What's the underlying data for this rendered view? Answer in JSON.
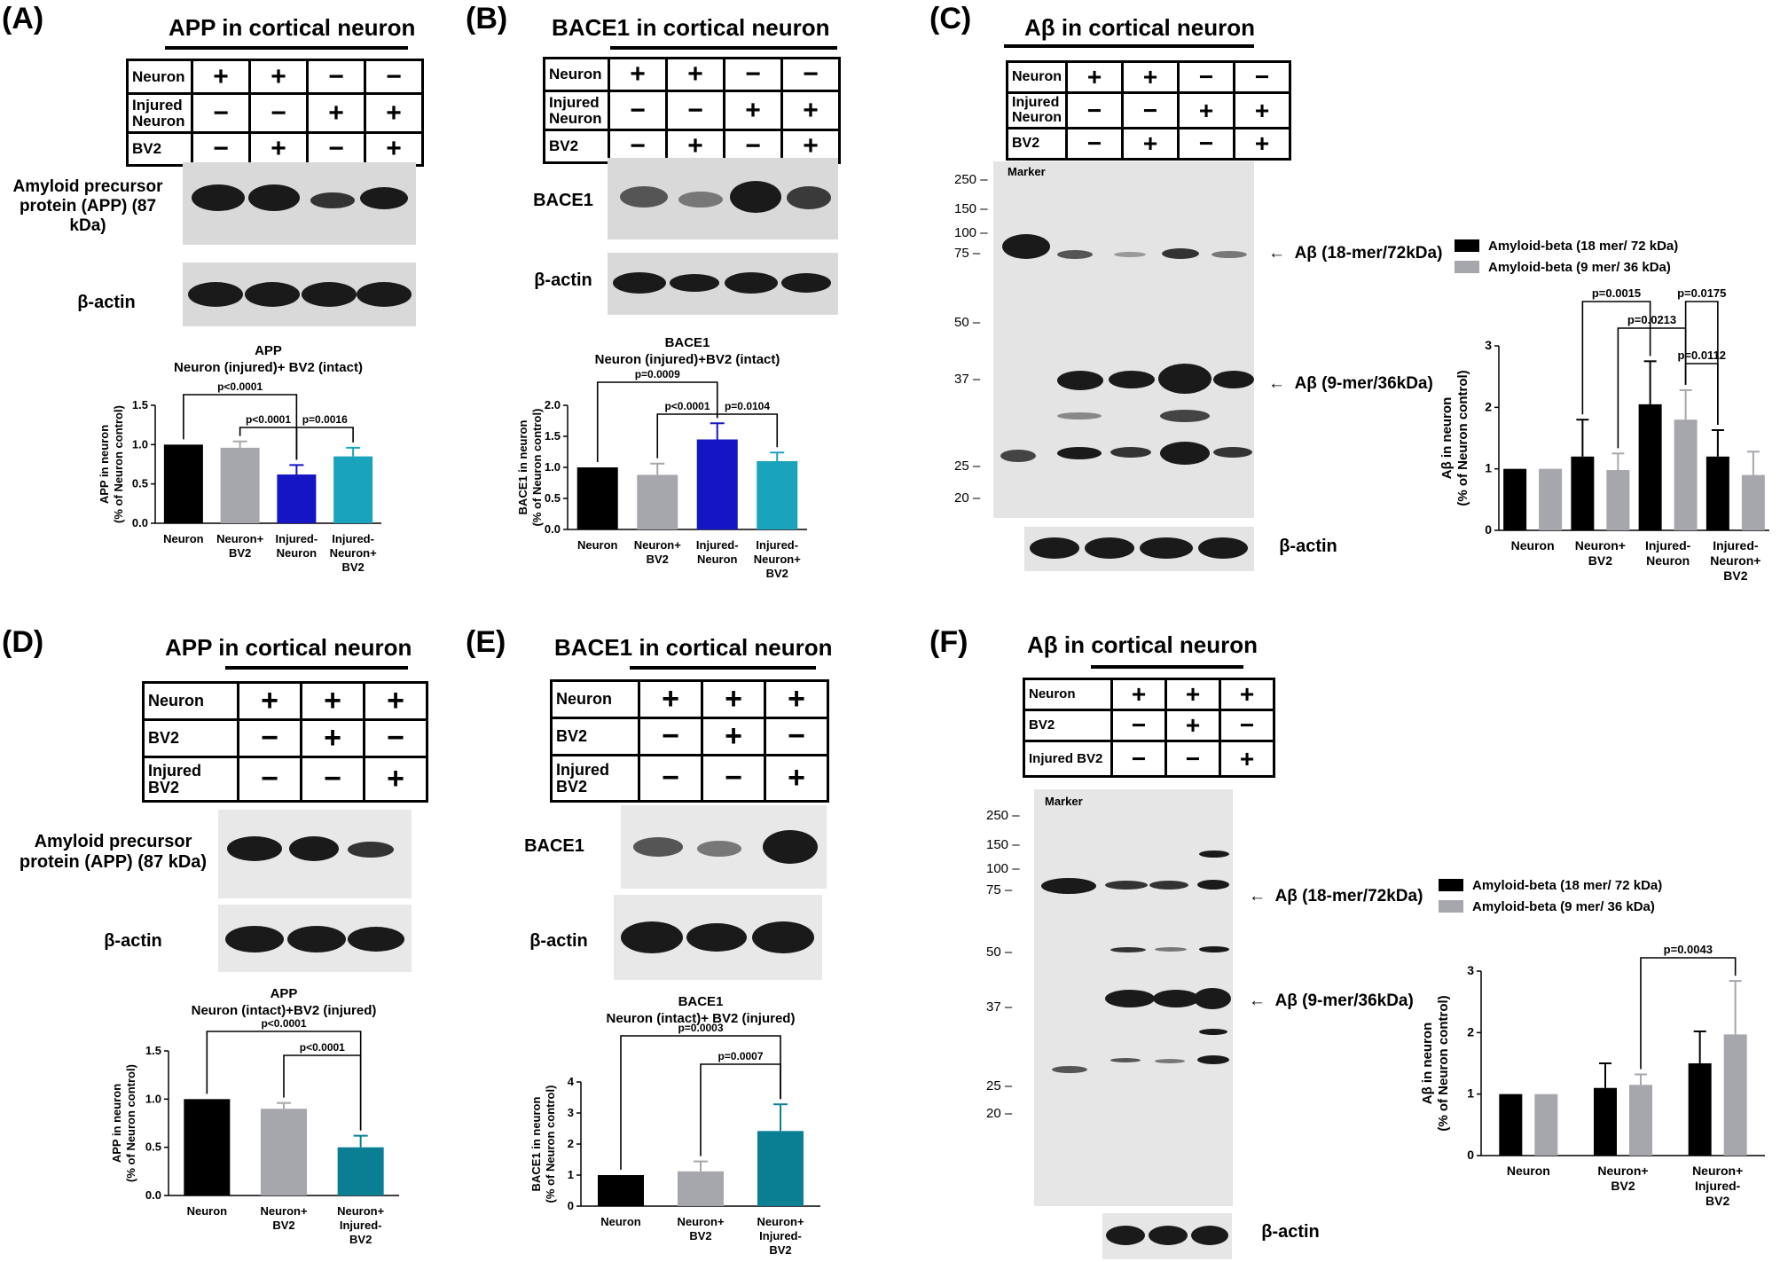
{
  "panels": {
    "A": {
      "label": "(A)",
      "title": "APP in cortical neuron",
      "conditions": [
        {
          "name": "Neuron",
          "values": [
            "+",
            "+",
            "−",
            "−"
          ]
        },
        {
          "name": "Injured Neuron",
          "values": [
            "−",
            "−",
            "+",
            "+"
          ]
        },
        {
          "name": "BV2",
          "values": [
            "−",
            "+",
            "−",
            "+"
          ]
        }
      ],
      "blot_label_1": "Amyloid precursor protein (APP) (87 kDa)",
      "blot_label_2": "β-actin",
      "chart_data": {
        "type": "bar",
        "title": "APP",
        "subtitle": "Neuron (injured)+ BV2 (intact)",
        "ylabel": "APP in neuron (% of Neuron control)",
        "categories": [
          "Neuron",
          "Neuron+ BV2",
          "Injured- Neuron",
          "Injured- Neuron+ BV2"
        ],
        "values": [
          1.0,
          0.96,
          0.62,
          0.85
        ],
        "errors": [
          0.0,
          0.08,
          0.12,
          0.11
        ],
        "colors": [
          "#000000",
          "#a6a6ad",
          "#1515c4",
          "#1aa3bd"
        ],
        "ylim": [
          0,
          1.5
        ],
        "yticks": [
          "0.0",
          "0.5",
          "1.0",
          "1.5"
        ],
        "annotations": [
          {
            "text": "p<0.0001",
            "from": 0,
            "to": 2
          },
          {
            "text": "p<0.0001",
            "from": 1,
            "to": 2
          },
          {
            "text": "p=0.0016",
            "from": 2,
            "to": 3
          }
        ]
      }
    },
    "B": {
      "label": "(B)",
      "title": "BACE1 in cortical neuron",
      "conditions": [
        {
          "name": "Neuron",
          "values": [
            "+",
            "+",
            "−",
            "−"
          ]
        },
        {
          "name": "Injured Neuron",
          "values": [
            "−",
            "−",
            "+",
            "+"
          ]
        },
        {
          "name": "BV2",
          "values": [
            "−",
            "+",
            "−",
            "+"
          ]
        }
      ],
      "blot_label_1": "BACE1",
      "blot_label_2": "β-actin",
      "chart_data": {
        "type": "bar",
        "title": "BACE1",
        "subtitle": "Neuron (injured)+BV2 (intact)",
        "ylabel": "BACE1 in neuron (% of Neuron control)",
        "categories": [
          "Neuron",
          "Neuron+ BV2",
          "Injured- Neuron",
          "Injured- Neuron+ BV2"
        ],
        "values": [
          1.0,
          0.88,
          1.45,
          1.1
        ],
        "errors": [
          0.0,
          0.18,
          0.26,
          0.14
        ],
        "colors": [
          "#000000",
          "#a6a6ad",
          "#1515c4",
          "#1aa3bd"
        ],
        "ylim": [
          0,
          2.0
        ],
        "yticks": [
          "0.0",
          "0.5",
          "1.0",
          "1.5",
          "2.0"
        ],
        "annotations": [
          {
            "text": "p=0.0009",
            "from": 0,
            "to": 2
          },
          {
            "text": "p<0.0001",
            "from": 1,
            "to": 2
          },
          {
            "text": "p=0.0104",
            "from": 2,
            "to": 3
          }
        ]
      }
    },
    "C": {
      "label": "(C)",
      "title": "Aβ in cortical neuron",
      "conditions": [
        {
          "name": "Neuron",
          "values": [
            "+",
            "+",
            "−",
            "−"
          ]
        },
        {
          "name": "Injured Neuron",
          "values": [
            "−",
            "−",
            "+",
            "+"
          ]
        },
        {
          "name": "BV2",
          "values": [
            "−",
            "+",
            "−",
            "+"
          ]
        }
      ],
      "marker_label": "Marker",
      "markers": [
        "250",
        "150",
        "100",
        "75",
        "50",
        "37",
        "25",
        "20"
      ],
      "arrow_1": "Aβ (18-mer/72kDa)",
      "arrow_2": "Aβ (9-mer/36kDa)",
      "actin_label": "β-actin",
      "chart_data": {
        "type": "bar",
        "ylabel": "Aβ in neuron (% of Neuron control)",
        "categories": [
          "Neuron",
          "Neuron+ BV2",
          "Injured- Neuron",
          "Injured- Neuron+ BV2"
        ],
        "series": [
          {
            "name": "Amyloid-beta (18 mer/ 72 kDa)",
            "color": "#000000",
            "values": [
              1.0,
              1.2,
              2.05,
              1.2
            ],
            "errors": [
              0.0,
              0.6,
              0.7,
              0.43
            ]
          },
          {
            "name": "Amyloid-beta (9 mer/ 36 kDa)",
            "color": "#a6a6ad",
            "values": [
              1.0,
              0.98,
              1.8,
              0.9
            ],
            "errors": [
              0.0,
              0.27,
              0.48,
              0.38
            ]
          }
        ],
        "ylim": [
          0,
          3
        ],
        "yticks": [
          "0",
          "1",
          "2",
          "3"
        ],
        "legend": "top",
        "annotations": [
          {
            "text": "p=0.0015",
            "from": 1,
            "to": 2
          },
          {
            "text": "p=0.0175",
            "from": 2,
            "to": 3
          },
          {
            "text": "p=0.0213",
            "from": 1,
            "to": 2
          },
          {
            "text": "p=0.0112",
            "from": 2,
            "to": 3
          }
        ]
      }
    },
    "D": {
      "label": "(D)",
      "title": "APP in cortical neuron",
      "conditions": [
        {
          "name": "Neuron",
          "values": [
            "+",
            "+",
            "+"
          ]
        },
        {
          "name": "BV2",
          "values": [
            "−",
            "+",
            "−"
          ]
        },
        {
          "name": "Injured BV2",
          "values": [
            "−",
            "−",
            "+"
          ]
        }
      ],
      "blot_label_1": "Amyloid precursor protein (APP) (87 kDa)",
      "blot_label_2": "β-actin",
      "chart_data": {
        "type": "bar",
        "title": "APP",
        "subtitle": "Neuron (intact)+BV2 (injured)",
        "ylabel": "APP in neuron (% of Neuron control)",
        "categories": [
          "Neuron",
          "Neuron+ BV2",
          "Neuron+ Injured- BV2"
        ],
        "values": [
          1.0,
          0.9,
          0.5
        ],
        "errors": [
          0.0,
          0.06,
          0.12
        ],
        "colors": [
          "#000000",
          "#a6a6ad",
          "#0a7f94"
        ],
        "ylim": [
          0,
          1.5
        ],
        "yticks": [
          "0.0",
          "0.5",
          "1.0",
          "1.5"
        ],
        "annotations": [
          {
            "text": "p<0.0001",
            "from": 0,
            "to": 2
          },
          {
            "text": "p<0.0001",
            "from": 1,
            "to": 2
          }
        ]
      }
    },
    "E": {
      "label": "(E)",
      "title": "BACE1 in cortical neuron",
      "conditions": [
        {
          "name": "Neuron",
          "values": [
            "+",
            "+",
            "+"
          ]
        },
        {
          "name": "BV2",
          "values": [
            "−",
            "+",
            "−"
          ]
        },
        {
          "name": "Injured BV2",
          "values": [
            "−",
            "−",
            "+"
          ]
        }
      ],
      "blot_label_1": "BACE1",
      "blot_label_2": "β-actin",
      "chart_data": {
        "type": "bar",
        "title": "BACE1",
        "subtitle": "Neuron (intact)+ BV2 (injured)",
        "ylabel": "BACE1 in neuron (% of Neuron control)",
        "categories": [
          "Neuron",
          "Neuron+ BV2",
          "Neuron+ Injured- BV2"
        ],
        "values": [
          1.0,
          1.12,
          2.42
        ],
        "errors": [
          0.0,
          0.32,
          0.86
        ],
        "colors": [
          "#000000",
          "#a6a6ad",
          "#0a7f94"
        ],
        "ylim": [
          0,
          4
        ],
        "yticks": [
          "0",
          "1",
          "2",
          "3",
          "4"
        ],
        "annotations": [
          {
            "text": "p=0.0003",
            "from": 0,
            "to": 2
          },
          {
            "text": "p=0.0007",
            "from": 1,
            "to": 2
          }
        ]
      }
    },
    "F": {
      "label": "(F)",
      "title": "Aβ in cortical neuron",
      "conditions": [
        {
          "name": "Neuron",
          "values": [
            "+",
            "+",
            "+"
          ]
        },
        {
          "name": "BV2",
          "values": [
            "−",
            "+",
            "−"
          ]
        },
        {
          "name": "Injured BV2",
          "values": [
            "−",
            "−",
            "+"
          ]
        }
      ],
      "marker_label": "Marker",
      "markers": [
        "250",
        "150",
        "100",
        "75",
        "50",
        "37",
        "25",
        "20"
      ],
      "arrow_1": "Aβ (18-mer/72kDa)",
      "arrow_2": "Aβ (9-mer/36kDa)",
      "actin_label": "β-actin",
      "chart_data": {
        "type": "bar",
        "ylabel": "Aβ in neuron (% of Neuron control)",
        "categories": [
          "Neuron",
          "Neuron+ BV2",
          "Neuron+ Injured- BV2"
        ],
        "series": [
          {
            "name": "Amyloid-beta (18 mer/ 72 kDa)",
            "color": "#000000",
            "values": [
              1.0,
              1.1,
              1.5
            ],
            "errors": [
              0.0,
              0.4,
              0.52
            ]
          },
          {
            "name": "Amyloid-beta (9 mer/ 36 kDa)",
            "color": "#a6a6ad",
            "values": [
              1.0,
              1.15,
              1.97
            ],
            "errors": [
              0.0,
              0.17,
              0.87
            ]
          }
        ],
        "ylim": [
          0,
          3
        ],
        "yticks": [
          "0",
          "1",
          "2",
          "3"
        ],
        "legend": "top",
        "annotations": [
          {
            "text": "p=0.0043",
            "from": 1,
            "to": 2
          }
        ]
      }
    }
  }
}
